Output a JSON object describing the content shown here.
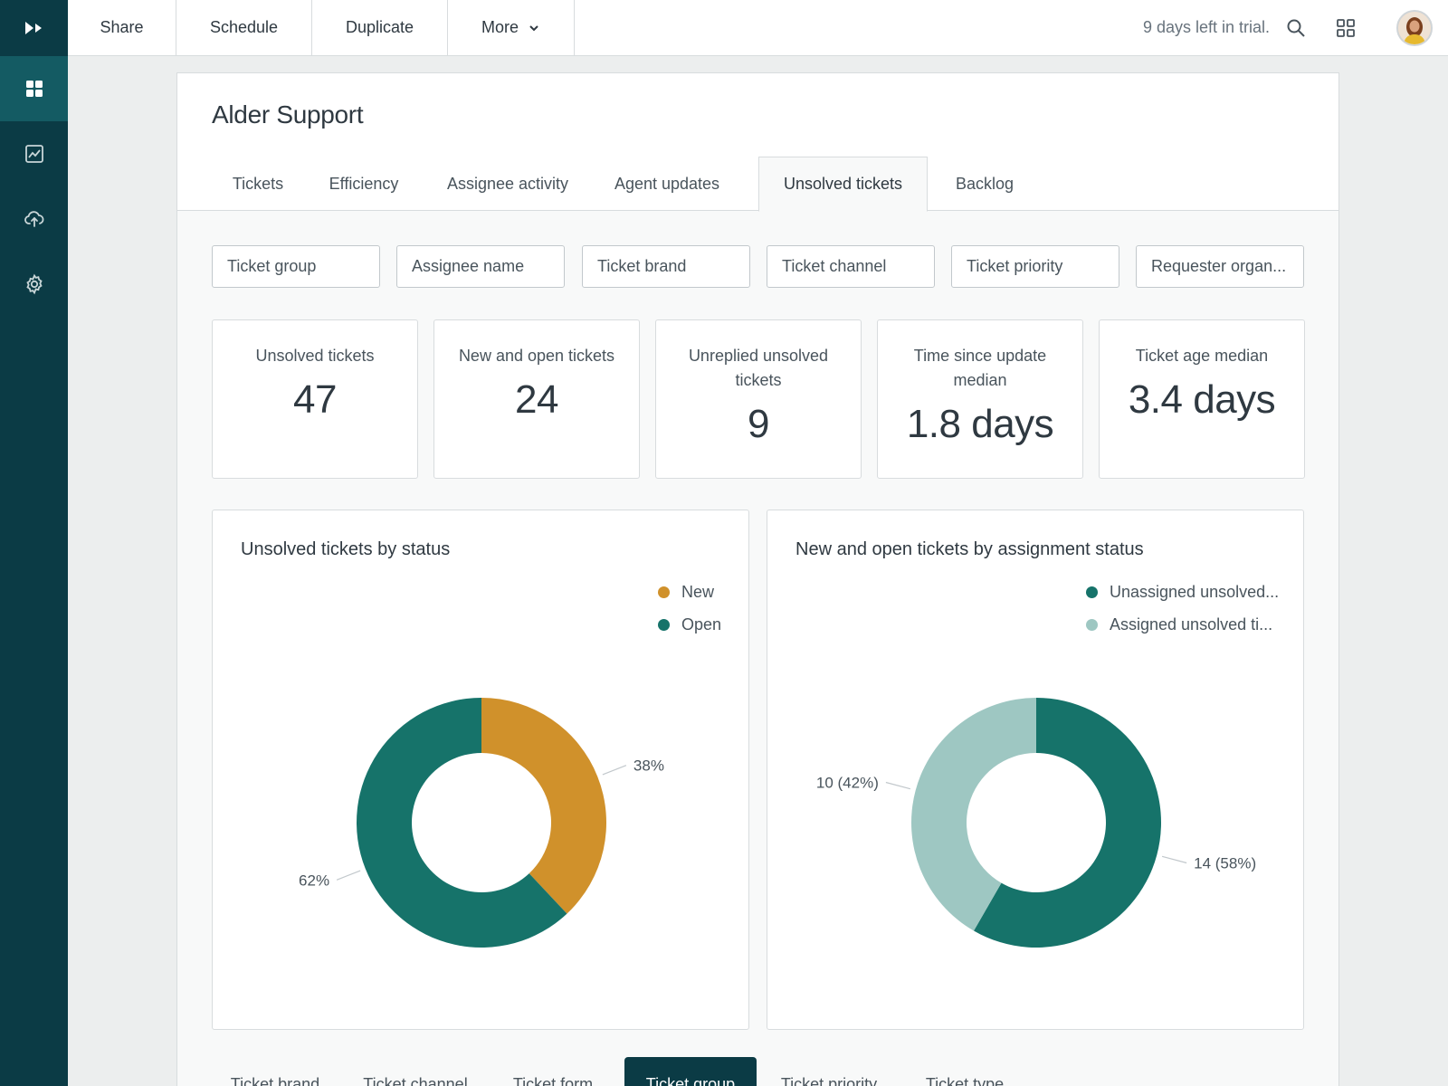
{
  "sidebar": {
    "items": [
      {
        "name": "dashboard",
        "icon": "grid-icon",
        "active": true
      },
      {
        "name": "reports",
        "icon": "chart-icon",
        "active": false
      },
      {
        "name": "upload",
        "icon": "cloud-upload-icon",
        "active": false
      },
      {
        "name": "settings",
        "icon": "gear-icon",
        "active": false
      }
    ]
  },
  "topbar": {
    "share": "Share",
    "schedule": "Schedule",
    "duplicate": "Duplicate",
    "more": "More",
    "trial": "9 days left in trial."
  },
  "page": {
    "title": "Alder Support",
    "tabs": [
      "Tickets",
      "Efficiency",
      "Assignee activity",
      "Agent updates",
      "Unsolved tickets",
      "Backlog"
    ],
    "active_tab": "Unsolved tickets"
  },
  "filters": [
    "Ticket group",
    "Assignee name",
    "Ticket brand",
    "Ticket channel",
    "Ticket priority",
    "Requester organ..."
  ],
  "kpis": [
    {
      "label": "Unsolved tickets",
      "value": "47"
    },
    {
      "label": "New and open tickets",
      "value": "24"
    },
    {
      "label": "Unreplied unsolved tickets",
      "value": "9"
    },
    {
      "label": "Time since update median",
      "value": "1.8 days"
    },
    {
      "label": "Ticket age median",
      "value": "3.4 days"
    }
  ],
  "colors": {
    "new": "#d0912b",
    "open": "#16736a",
    "unassigned": "#16736a",
    "assigned": "#9ec7c2",
    "sidebar": "#0b3b45"
  },
  "chart_data": [
    {
      "type": "pie",
      "title": "Unsolved tickets by status",
      "legend_position": "top-right",
      "categories": [
        "New",
        "Open"
      ],
      "values": [
        38,
        62
      ],
      "labels": [
        "38%",
        "62%"
      ]
    },
    {
      "type": "pie",
      "title": "New and open tickets by assignment status",
      "legend_position": "top-right",
      "categories": [
        "Unassigned unsolved...",
        "Assigned unsolved ti..."
      ],
      "values": [
        14,
        10
      ],
      "labels": [
        "14 (58%)",
        "10 (42%)"
      ]
    }
  ],
  "bottom_tabs": [
    "Ticket brand",
    "Ticket channel",
    "Ticket form",
    "Ticket group",
    "Ticket priority",
    "Ticket type"
  ],
  "bottom_active": "Ticket group"
}
